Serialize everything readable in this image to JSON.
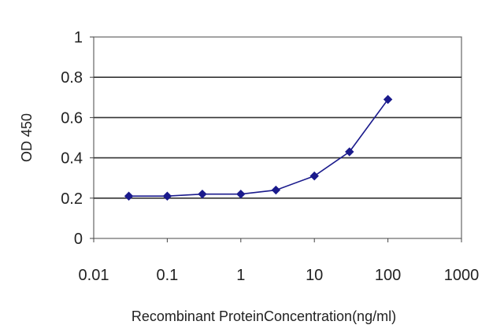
{
  "chart_data": {
    "type": "line",
    "title": "",
    "xlabel": "Recombinant ProteinConcentration(ng/ml)",
    "ylabel": "OD 450",
    "x_scale": "log",
    "xlim": [
      0.01,
      1000
    ],
    "ylim": [
      0,
      1
    ],
    "x_ticks": [
      0.01,
      0.1,
      1,
      10,
      100,
      1000
    ],
    "x_tick_labels": [
      "0.01",
      "0.1",
      "1",
      "10",
      "100",
      "1000"
    ],
    "y_ticks": [
      0,
      0.2,
      0.4,
      0.6,
      0.8,
      1
    ],
    "y_tick_labels": [
      "0",
      "0.2",
      "0.4",
      "0.6",
      "0.8",
      "1"
    ],
    "grid": "horizontal",
    "legend": "none",
    "colors": {
      "series": "#1a1a8c",
      "plot_border": "#666666",
      "grid": "#333333"
    },
    "series": [
      {
        "x": [
          0.03,
          0.1,
          0.3,
          1,
          3,
          10,
          30,
          100
        ],
        "y": [
          0.21,
          0.21,
          0.22,
          0.22,
          0.24,
          0.31,
          0.43,
          0.69
        ]
      }
    ]
  }
}
